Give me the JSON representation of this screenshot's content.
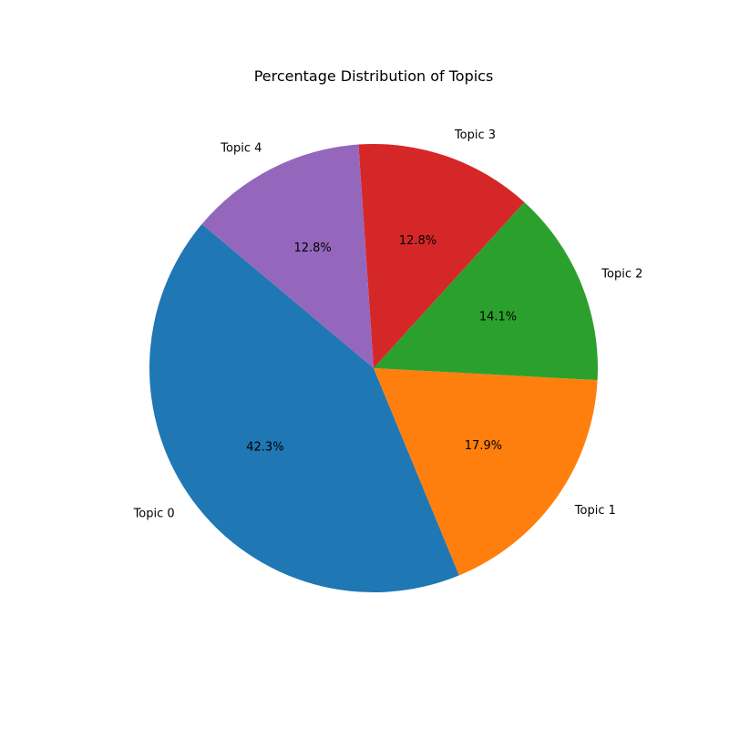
{
  "chart_data": {
    "type": "pie",
    "title": "Percentage Distribution of Topics",
    "categories": [
      "Topic 0",
      "Topic 1",
      "Topic 2",
      "Topic 3",
      "Topic 4"
    ],
    "values": [
      42.3,
      17.9,
      14.1,
      12.8,
      12.8
    ],
    "value_labels": [
      "42.3%",
      "17.9%",
      "14.1%",
      "12.8%",
      "12.8%"
    ],
    "colors": [
      "#1f77b4",
      "#ff7f0e",
      "#2ca02c",
      "#d62728",
      "#9467bd"
    ],
    "start_angle_deg": 140,
    "direction": "counterclockwise",
    "legend": "none"
  }
}
